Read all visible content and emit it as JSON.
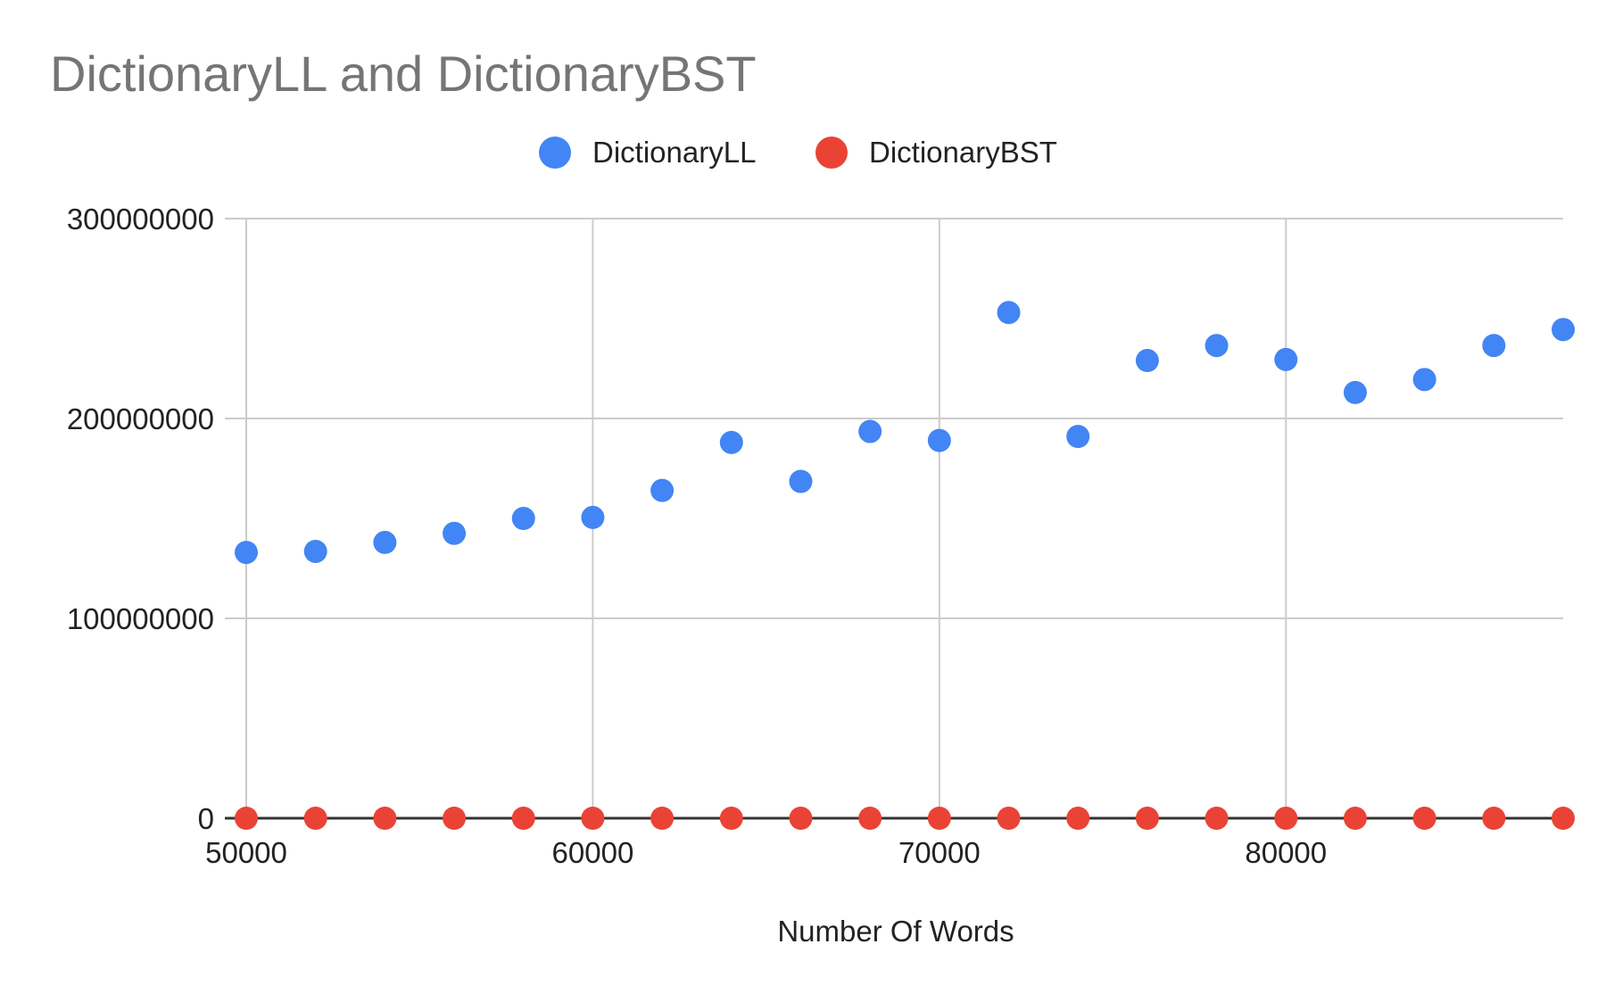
{
  "chart_data": {
    "type": "scatter",
    "title": "DictionaryLL and DictionaryBST",
    "xlabel": "Number Of Words",
    "ylabel": "",
    "xlim": [
      50000,
      88000
    ],
    "ylim": [
      0,
      300000000
    ],
    "xticks": [
      "50000",
      "60000",
      "70000",
      "80000"
    ],
    "yticks": [
      "0",
      "100000000",
      "200000000",
      "300000000"
    ],
    "grid": true,
    "legend_position": "top-center",
    "x": [
      50000,
      52000,
      54000,
      56000,
      58000,
      60000,
      62000,
      64000,
      66000,
      68000,
      70000,
      72000,
      74000,
      76000,
      78000,
      80000,
      82000,
      84000,
      86000,
      88000
    ],
    "series": [
      {
        "name": "DictionaryLL",
        "color": "#4285f4",
        "values": [
          133000000,
          133500000,
          138000000,
          142500000,
          150000000,
          150500000,
          164000000,
          188000000,
          168500000,
          193500000,
          189000000,
          253000000,
          191000000,
          229000000,
          236500000,
          229500000,
          213000000,
          219500000,
          236500000,
          244500000
        ]
      },
      {
        "name": "DictionaryBST",
        "color": "#ea4335",
        "values": [
          0,
          0,
          0,
          0,
          0,
          0,
          0,
          0,
          0,
          0,
          0,
          0,
          0,
          0,
          0,
          0,
          0,
          0,
          0,
          0
        ]
      }
    ]
  }
}
